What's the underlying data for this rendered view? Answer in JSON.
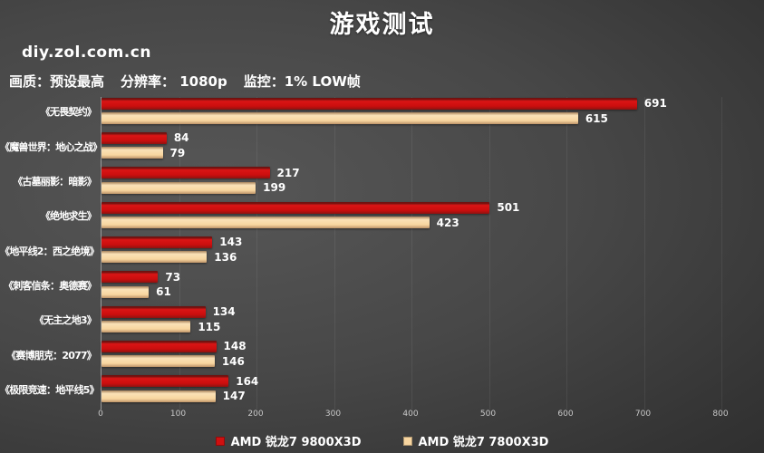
{
  "page": {
    "title": "游戏测试",
    "site": "diy.zol.com.cn",
    "settings": [
      "画质：预设最高",
      "分辨率： 1080p",
      "监控：1% LOW帧"
    ]
  },
  "chart_data": {
    "type": "bar",
    "orientation": "horizontal",
    "title": "游戏测试",
    "categories": [
      "《无畏契约》",
      "《魔兽世界：地心之战》",
      "《古墓丽影：暗影》",
      "《绝地求生》",
      "《地平线2：西之绝境》",
      "《刺客信条：奥德赛》",
      "《无主之地3》",
      "《赛博朋克：2077》",
      "《极限竞速：地平线5》"
    ],
    "series": [
      {
        "name": "AMD 锐龙7 9800X3D",
        "color": "#cf1010",
        "values": [
          691,
          84,
          217,
          501,
          143,
          73,
          134,
          148,
          164
        ]
      },
      {
        "name": "AMD 锐龙7 7800X3D",
        "color": "#f8d6a0",
        "values": [
          615,
          79,
          199,
          423,
          136,
          61,
          115,
          146,
          147
        ]
      }
    ],
    "xlim": [
      0,
      800
    ],
    "xticks": [
      0,
      100,
      200,
      300,
      400,
      500,
      600,
      700,
      800
    ],
    "grid": "vertical",
    "legend_position": "bottom",
    "value_labels": true
  }
}
